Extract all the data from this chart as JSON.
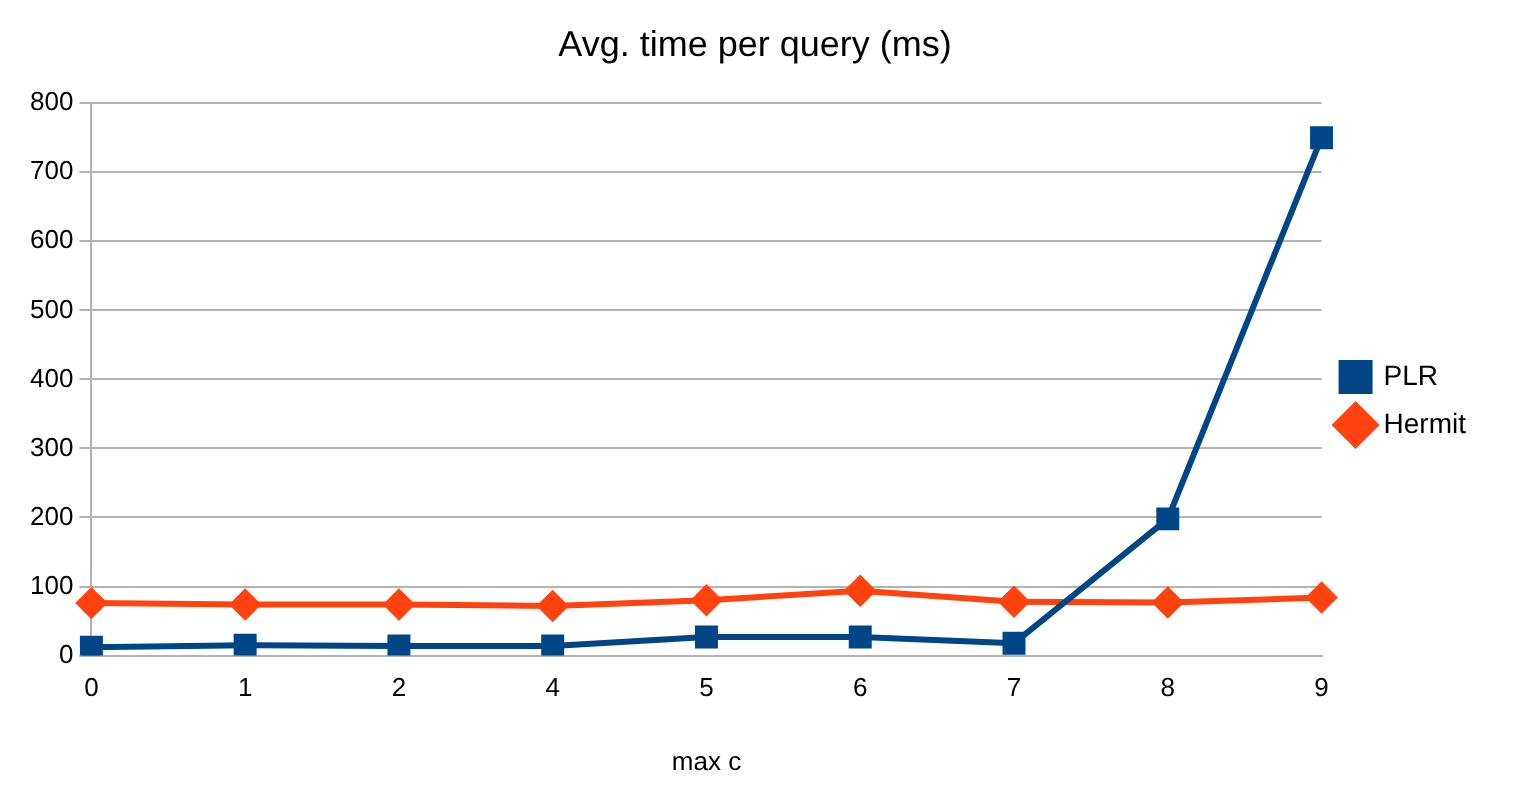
{
  "chart_data": {
    "type": "line",
    "title": "Avg. time per query (ms)",
    "xlabel": "max c",
    "categories": [
      "0",
      "1",
      "2",
      "4",
      "5",
      "6",
      "7",
      "8",
      "9"
    ],
    "series": [
      {
        "name": "PLR",
        "color": "#004586",
        "marker": "square",
        "values": [
          12,
          15,
          14,
          14,
          27,
          27,
          18,
          198,
          750
        ]
      },
      {
        "name": "Hermit",
        "color": "#ff420e",
        "marker": "diamond",
        "values": [
          76,
          74,
          74,
          72,
          80,
          94,
          78,
          77,
          84
        ]
      }
    ],
    "ylim": [
      0,
      800
    ],
    "yticks": [
      0,
      100,
      200,
      300,
      400,
      500,
      600,
      700,
      800
    ],
    "grid": "y",
    "legend": "right",
    "line_style": "solid"
  }
}
